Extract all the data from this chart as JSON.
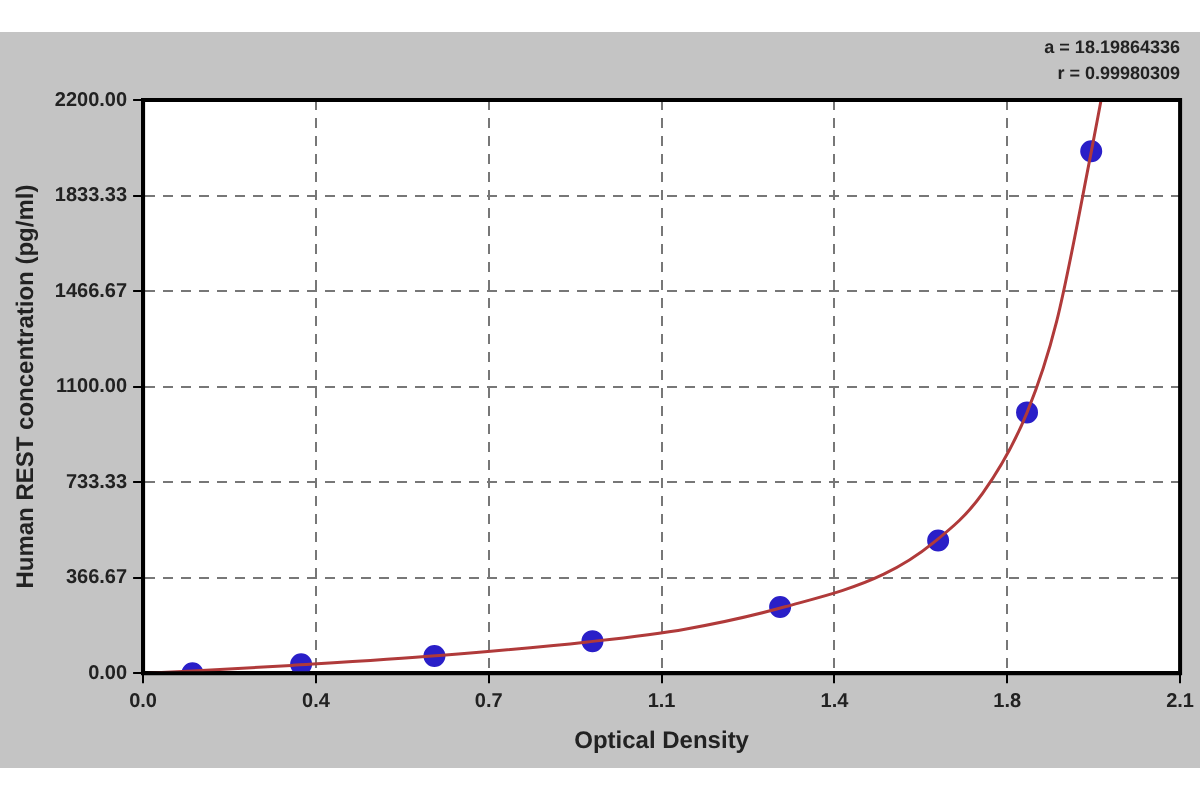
{
  "chart_data": {
    "type": "scatter",
    "xlabel": "Optical Density",
    "ylabel": "Human REST concentration (pg/ml)",
    "annotations": [
      "a = 18.19864336",
      "r = 0.99980309"
    ],
    "xlim": [
      0,
      2.1
    ],
    "xticks": [
      {
        "value": 0,
        "label": "0.0"
      },
      {
        "value": 0.35,
        "label": "0.4"
      },
      {
        "value": 0.7,
        "label": "0.7"
      },
      {
        "value": 1.05,
        "label": "1.1"
      },
      {
        "value": 1.4,
        "label": "1.4"
      },
      {
        "value": 1.75,
        "label": "1.8"
      },
      {
        "value": 2.1,
        "label": "2.1"
      }
    ],
    "ylim": [
      0,
      2200
    ],
    "yticks": [
      {
        "value": 0,
        "label": "0.00"
      },
      {
        "value": 366.67,
        "label": "366.67"
      },
      {
        "value": 733.33,
        "label": "733.33"
      },
      {
        "value": 1100,
        "label": "1100.00"
      },
      {
        "value": 1466.67,
        "label": "1466.67"
      },
      {
        "value": 1833.33,
        "label": "1833.33"
      },
      {
        "value": 2200,
        "label": "2200.00"
      }
    ],
    "grid": true,
    "legend": false,
    "series": [
      {
        "type": "line",
        "color": "#b03a3a",
        "marker": "none",
        "line_style": "solid",
        "x": [
          0.01,
          0.1,
          0.3,
          0.6,
          0.9,
          1.1,
          1.3,
          1.5,
          1.6,
          1.7,
          1.79,
          1.85,
          1.92,
          1.94
        ],
        "values": [
          0,
          8,
          30,
          68,
          120,
          170,
          255,
          380,
          500,
          690,
          1000,
          1350,
          2000,
          2200
        ]
      },
      {
        "type": "scatter",
        "color": "#2a1fc8",
        "marker": "circle",
        "x": [
          0.1,
          0.32,
          0.59,
          0.91,
          1.29,
          1.61,
          1.79,
          1.92
        ],
        "values": [
          0,
          34,
          66,
          123,
          254,
          509,
          1001,
          2003
        ]
      }
    ]
  }
}
